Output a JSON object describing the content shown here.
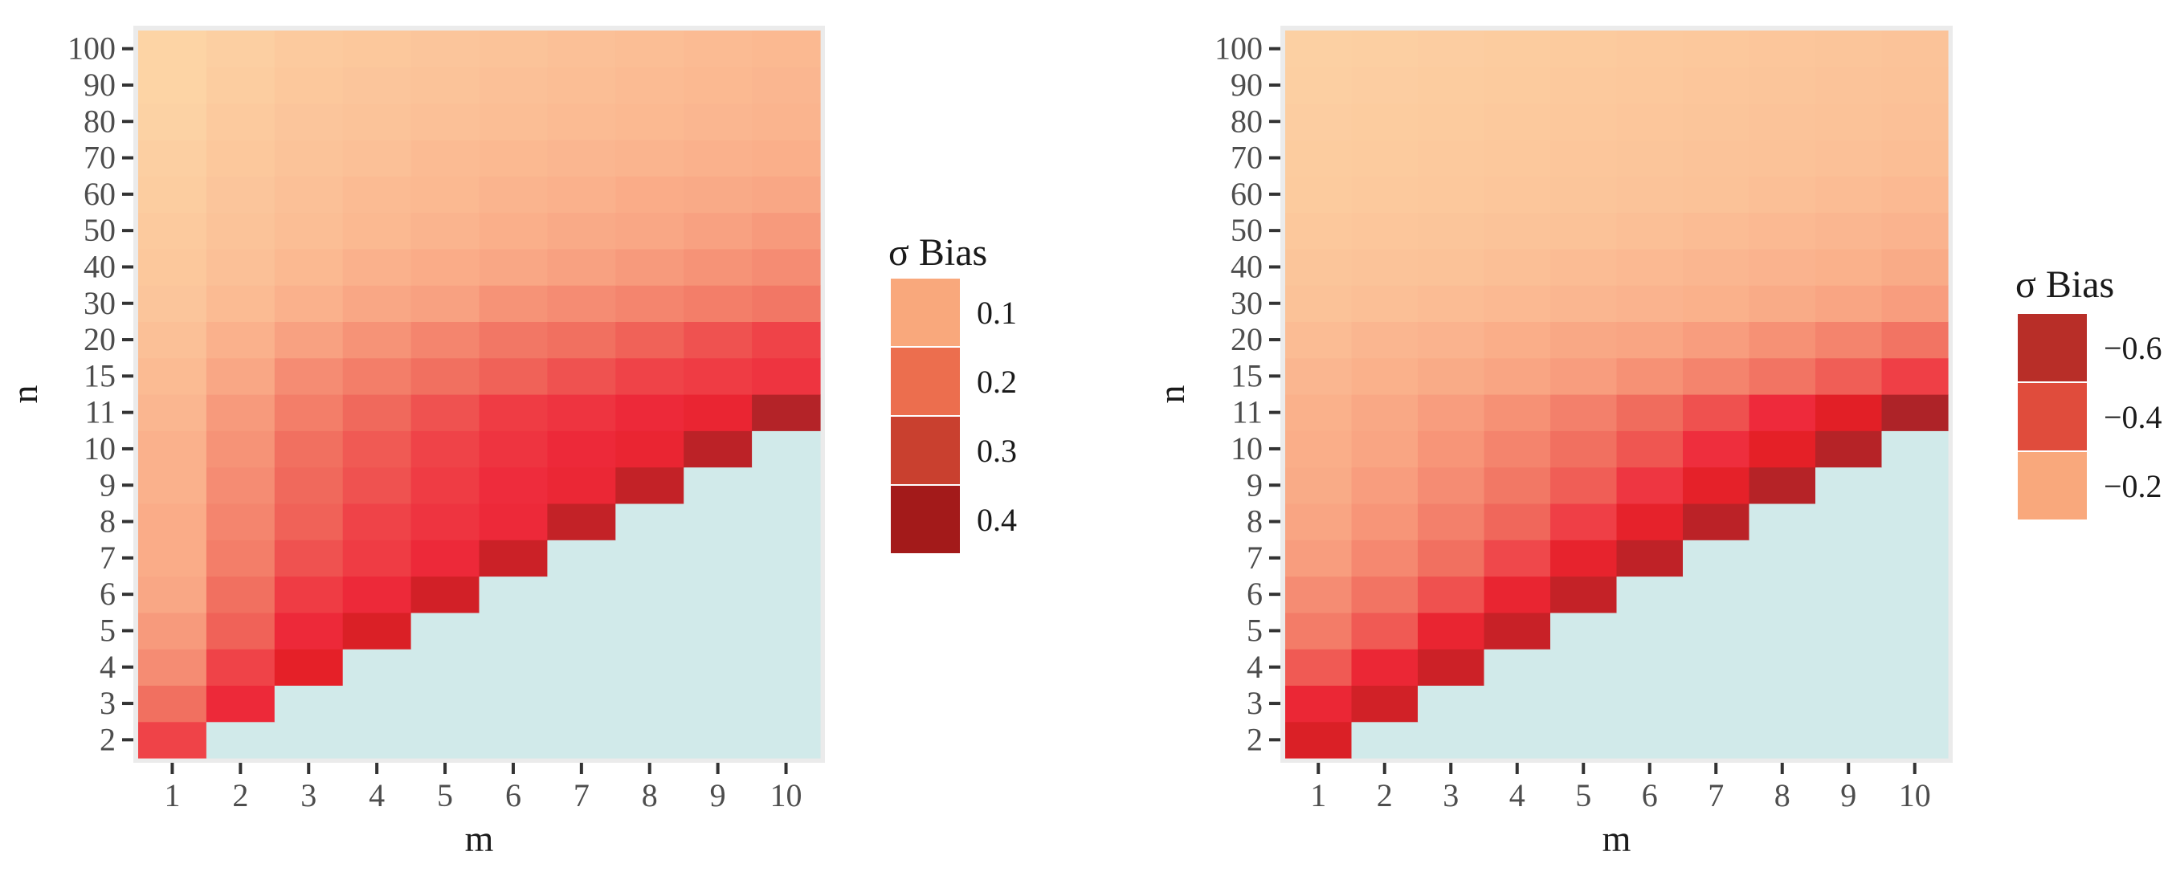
{
  "chart_data": [
    {
      "type": "heatmap",
      "title": "",
      "xlabel": "m",
      "ylabel": "n",
      "x_ticks": [
        "1",
        "2",
        "3",
        "4",
        "5",
        "6",
        "7",
        "8",
        "9",
        "10"
      ],
      "y_ticks": [
        "2",
        "3",
        "4",
        "5",
        "6",
        "7",
        "8",
        "9",
        "10",
        "11",
        "15",
        "20",
        "30",
        "40",
        "50",
        "60",
        "70",
        "80",
        "90",
        "100"
      ],
      "legend": {
        "title": "σ Bias",
        "labels": [
          "0.1",
          "0.2",
          "0.3",
          "0.4"
        ],
        "colors": [
          "#f9a87c",
          "#ec6e4e",
          "#c9402f",
          "#a31a1a"
        ]
      },
      "missing_color": "#d1eaea",
      "values": [
        [
          0.24,
          null,
          null,
          null,
          null,
          null,
          null,
          null,
          null,
          null
        ],
        [
          0.18,
          0.28,
          null,
          null,
          null,
          null,
          null,
          null,
          null,
          null
        ],
        [
          0.14,
          0.24,
          0.33,
          null,
          null,
          null,
          null,
          null,
          null,
          null
        ],
        [
          0.12,
          0.2,
          0.28,
          0.35,
          null,
          null,
          null,
          null,
          null,
          null
        ],
        [
          0.1,
          0.18,
          0.25,
          0.28,
          0.36,
          null,
          null,
          null,
          null,
          null
        ],
        [
          0.09,
          0.16,
          0.22,
          0.25,
          0.28,
          0.37,
          null,
          null,
          null,
          null
        ],
        [
          0.09,
          0.15,
          0.2,
          0.24,
          0.26,
          0.28,
          0.38,
          null,
          null,
          null
        ],
        [
          0.08,
          0.14,
          0.19,
          0.22,
          0.25,
          0.27,
          0.29,
          0.38,
          null,
          null
        ],
        [
          0.08,
          0.13,
          0.18,
          0.21,
          0.24,
          0.26,
          0.28,
          0.3,
          0.39,
          null
        ],
        [
          0.07,
          0.12,
          0.16,
          0.19,
          0.22,
          0.25,
          0.26,
          0.28,
          0.3,
          0.4
        ],
        [
          0.06,
          0.1,
          0.14,
          0.16,
          0.18,
          0.2,
          0.22,
          0.24,
          0.25,
          0.26
        ],
        [
          0.05,
          0.08,
          0.11,
          0.13,
          0.15,
          0.17,
          0.18,
          0.2,
          0.22,
          0.24
        ],
        [
          0.04,
          0.06,
          0.08,
          0.1,
          0.11,
          0.13,
          0.14,
          0.15,
          0.16,
          0.17
        ],
        [
          0.035,
          0.05,
          0.065,
          0.08,
          0.09,
          0.1,
          0.11,
          0.12,
          0.13,
          0.14
        ],
        [
          0.03,
          0.045,
          0.055,
          0.065,
          0.075,
          0.085,
          0.095,
          0.1,
          0.11,
          0.12
        ],
        [
          0.025,
          0.04,
          0.05,
          0.06,
          0.065,
          0.075,
          0.08,
          0.09,
          0.095,
          0.1
        ],
        [
          0.02,
          0.035,
          0.045,
          0.05,
          0.06,
          0.065,
          0.07,
          0.075,
          0.08,
          0.085
        ],
        [
          0.015,
          0.03,
          0.04,
          0.045,
          0.05,
          0.055,
          0.06,
          0.065,
          0.07,
          0.075
        ],
        [
          0.01,
          0.025,
          0.035,
          0.04,
          0.045,
          0.05,
          0.055,
          0.06,
          0.065,
          0.07
        ],
        [
          0.01,
          0.02,
          0.03,
          0.035,
          0.04,
          0.045,
          0.05,
          0.055,
          0.06,
          0.065
        ]
      ]
    },
    {
      "type": "heatmap",
      "title": "",
      "xlabel": "m",
      "ylabel": "n",
      "x_ticks": [
        "1",
        "2",
        "3",
        "4",
        "5",
        "6",
        "7",
        "8",
        "9",
        "10"
      ],
      "y_ticks": [
        "2",
        "3",
        "4",
        "5",
        "6",
        "7",
        "8",
        "9",
        "10",
        "11",
        "15",
        "20",
        "30",
        "40",
        "50",
        "60",
        "70",
        "80",
        "90",
        "100"
      ],
      "legend": {
        "title": "σ Bias",
        "labels": [
          "−0.6",
          "−0.4",
          "−0.2"
        ],
        "colors": [
          "#b82e28",
          "#e04c3c",
          "#f9a87c"
        ]
      },
      "missing_color": "#d1eaea",
      "values": [
        [
          -0.6,
          null,
          null,
          null,
          null,
          null,
          null,
          null,
          null,
          null
        ],
        [
          -0.5,
          -0.62,
          null,
          null,
          null,
          null,
          null,
          null,
          null,
          null
        ],
        [
          -0.36,
          -0.5,
          -0.63,
          null,
          null,
          null,
          null,
          null,
          null,
          null
        ],
        [
          -0.28,
          -0.36,
          -0.52,
          -0.64,
          null,
          null,
          null,
          null,
          null,
          null
        ],
        [
          -0.24,
          -0.3,
          -0.38,
          -0.52,
          -0.65,
          null,
          null,
          null,
          null,
          null
        ],
        [
          -0.2,
          -0.25,
          -0.31,
          -0.4,
          -0.54,
          -0.66,
          null,
          null,
          null,
          null
        ],
        [
          -0.18,
          -0.22,
          -0.27,
          -0.33,
          -0.42,
          -0.55,
          -0.67,
          null,
          null,
          null
        ],
        [
          -0.16,
          -0.2,
          -0.24,
          -0.29,
          -0.35,
          -0.44,
          -0.56,
          -0.68,
          null,
          null
        ],
        [
          -0.15,
          -0.18,
          -0.22,
          -0.26,
          -0.31,
          -0.37,
          -0.46,
          -0.57,
          -0.68,
          null
        ],
        [
          -0.14,
          -0.17,
          -0.2,
          -0.23,
          -0.27,
          -0.32,
          -0.38,
          -0.47,
          -0.58,
          -0.7
        ],
        [
          -0.12,
          -0.14,
          -0.16,
          -0.18,
          -0.2,
          -0.23,
          -0.26,
          -0.3,
          -0.35,
          -0.42
        ],
        [
          -0.1,
          -0.12,
          -0.13,
          -0.15,
          -0.17,
          -0.18,
          -0.2,
          -0.23,
          -0.26,
          -0.3
        ],
        [
          -0.08,
          -0.09,
          -0.1,
          -0.11,
          -0.12,
          -0.13,
          -0.14,
          -0.16,
          -0.18,
          -0.2
        ],
        [
          -0.07,
          -0.075,
          -0.08,
          -0.09,
          -0.1,
          -0.11,
          -0.12,
          -0.13,
          -0.14,
          -0.16
        ],
        [
          -0.06,
          -0.065,
          -0.07,
          -0.075,
          -0.08,
          -0.09,
          -0.1,
          -0.11,
          -0.12,
          -0.13
        ],
        [
          -0.05,
          -0.055,
          -0.06,
          -0.065,
          -0.07,
          -0.075,
          -0.08,
          -0.09,
          -0.1,
          -0.11
        ],
        [
          -0.045,
          -0.05,
          -0.055,
          -0.06,
          -0.065,
          -0.07,
          -0.075,
          -0.08,
          -0.085,
          -0.095
        ],
        [
          -0.04,
          -0.045,
          -0.05,
          -0.055,
          -0.06,
          -0.065,
          -0.07,
          -0.075,
          -0.08,
          -0.085
        ],
        [
          -0.035,
          -0.04,
          -0.045,
          -0.05,
          -0.055,
          -0.06,
          -0.065,
          -0.07,
          -0.075,
          -0.08
        ],
        [
          -0.03,
          -0.035,
          -0.04,
          -0.045,
          -0.05,
          -0.055,
          -0.06,
          -0.065,
          -0.07,
          -0.075
        ]
      ]
    }
  ]
}
